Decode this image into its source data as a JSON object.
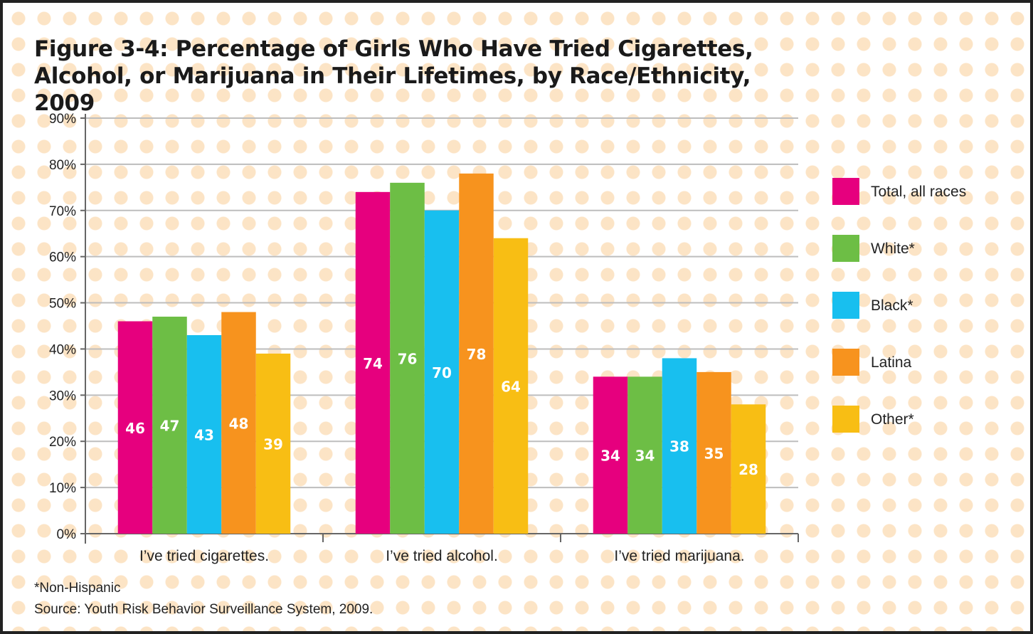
{
  "title": "Figure 3-4: Percentage of Girls Who Have Tried Cigarettes, Alcohol, or Marijuana in Their Lifetimes, by Race/Ethnicity, 2009",
  "footnote": "*Non-Hispanic",
  "source": "Source: Youth Risk Behavior Surveillance System, 2009.",
  "chart_data": {
    "type": "bar",
    "title": "Figure 3-4: Percentage of Girls Who Have Tried Cigarettes, Alcohol, or Marijuana in Their Lifetimes, by Race/Ethnicity, 2009",
    "xlabel": "",
    "ylabel": "",
    "categories": [
      "I’ve tried cigarettes.",
      "I’ve tried alcohol.",
      "I’ve tried marijuana."
    ],
    "series": [
      {
        "name": "Total, all races",
        "color": "#E6007E",
        "values": [
          46,
          74,
          34
        ]
      },
      {
        "name": "White*",
        "color": "#6DBE45",
        "values": [
          47,
          76,
          34
        ]
      },
      {
        "name": "Black*",
        "color": "#18BFEF",
        "values": [
          43,
          70,
          38
        ]
      },
      {
        "name": "Latina",
        "color": "#F7931E",
        "values": [
          48,
          78,
          35
        ]
      },
      {
        "name": "Other*",
        "color": "#F8BE14",
        "values": [
          39,
          64,
          28
        ]
      }
    ],
    "ylim": [
      0,
      90
    ],
    "yticks": [
      0,
      10,
      20,
      30,
      40,
      50,
      60,
      70,
      80,
      90
    ],
    "ytick_labels": [
      "0%",
      "10%",
      "20%",
      "30%",
      "40%",
      "50%",
      "60%",
      "70%",
      "80%",
      "90%"
    ],
    "grid": true,
    "legend_position": "right"
  }
}
